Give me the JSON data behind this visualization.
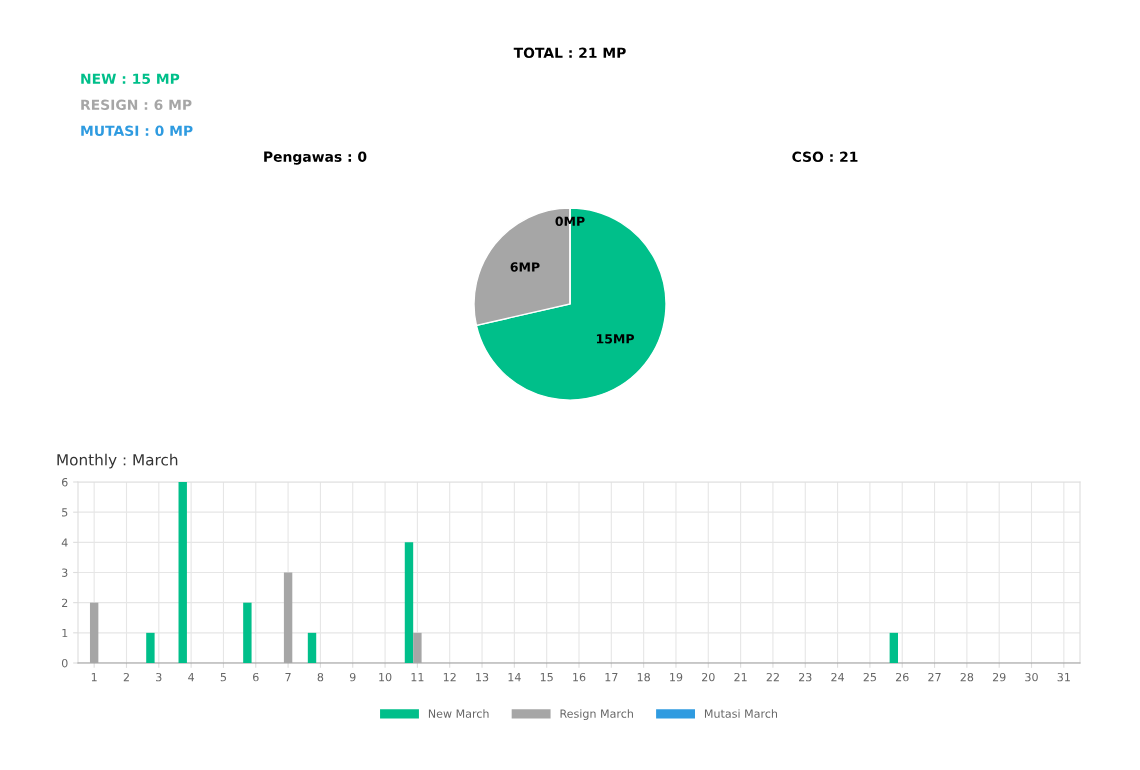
{
  "chart_data": [
    {
      "type": "other",
      "annotations": [
        "TOTAL : 21 MP",
        "NEW : 15 MP",
        "RESIGN : 6 MP",
        "MUTASI : 0 MP",
        "Pengawas : 0",
        "CSO : 21"
      ],
      "colors": [
        "#000000",
        "#00bf8a",
        "#a6a6a6",
        "#2f9be0",
        "#000000",
        "#000000"
      ]
    },
    {
      "type": "pie",
      "categories": [
        null,
        null,
        null
      ],
      "values": [
        15,
        6,
        0
      ],
      "colors": [
        "#00bf8a",
        "#a6a6a6",
        "#2f9be0"
      ],
      "value_labels": [
        "15MP",
        "6MP",
        "0MP"
      ]
    },
    {
      "type": "bar",
      "title": "Monthly : March",
      "categories": [
        "1",
        "2",
        "3",
        "4",
        "5",
        "6",
        "7",
        "8",
        "9",
        "10",
        "11",
        "12",
        "13",
        "14",
        "15",
        "16",
        "17",
        "18",
        "19",
        "20",
        "21",
        "22",
        "23",
        "24",
        "25",
        "26",
        "27",
        "28",
        "29",
        "30",
        "31"
      ],
      "series": [
        {
          "name": "New March",
          "color": "#00bf8a",
          "values": [
            0,
            0,
            1,
            6,
            0,
            2,
            0,
            1,
            0,
            0,
            4,
            0,
            0,
            0,
            0,
            0,
            0,
            0,
            0,
            0,
            0,
            0,
            0,
            0,
            0,
            1,
            0,
            0,
            0,
            0,
            0
          ]
        },
        {
          "name": "Resign March",
          "color": "#a6a6a6",
          "values": [
            2,
            0,
            0,
            0,
            0,
            0,
            3,
            0,
            0,
            0,
            1,
            0,
            0,
            0,
            0,
            0,
            0,
            0,
            0,
            0,
            0,
            0,
            0,
            0,
            0,
            0,
            0,
            0,
            0,
            0,
            0
          ]
        },
        {
          "name": "Mutasi March",
          "color": "#2f9be0",
          "values": [
            0,
            0,
            0,
            0,
            0,
            0,
            0,
            0,
            0,
            0,
            0,
            0,
            0,
            0,
            0,
            0,
            0,
            0,
            0,
            0,
            0,
            0,
            0,
            0,
            0,
            0,
            0,
            0,
            0,
            0,
            0
          ]
        }
      ],
      "ylim": [
        0,
        6
      ],
      "yticks": [
        0,
        1,
        2,
        3,
        4,
        5,
        6
      ],
      "grid": true,
      "legend": "bottom"
    }
  ]
}
